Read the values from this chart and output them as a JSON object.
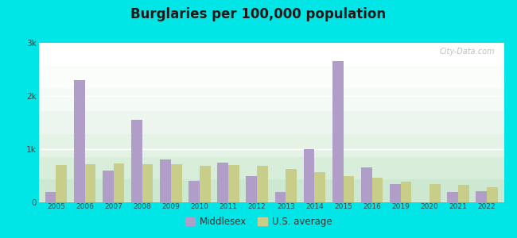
{
  "title": "Burglaries per 100,000 population",
  "years": [
    2005,
    2006,
    2007,
    2008,
    2009,
    2010,
    2011,
    2012,
    2013,
    2014,
    2015,
    2016,
    2019,
    2020,
    2021,
    2022
  ],
  "middlesex": [
    200,
    2300,
    600,
    1550,
    800,
    400,
    750,
    500,
    200,
    1000,
    2650,
    650,
    350,
    0,
    200,
    210
  ],
  "us_average": [
    700,
    720,
    730,
    720,
    720,
    690,
    700,
    680,
    620,
    570,
    490,
    460,
    390,
    340,
    330,
    290
  ],
  "middlesex_color": "#b09ec9",
  "us_avg_color": "#c8cd8a",
  "outer_bg": "#00e5e5",
  "ylim": [
    0,
    3000
  ],
  "yticks": [
    0,
    1000,
    2000,
    3000
  ],
  "ytick_labels": [
    "0",
    "1k",
    "2k",
    "3k"
  ],
  "bar_width": 0.38,
  "legend_middlesex": "Middlesex",
  "legend_us": "U.S. average",
  "title_fontsize": 12,
  "title_fontweight": "bold",
  "grad_colors": [
    "#cde8d0",
    "#d8edda",
    "#e5f2e6",
    "#edf6ee",
    "#f4faf5",
    "#fafdf9",
    "#ffffff"
  ],
  "watermark_text": "City-Data.com",
  "watermark_color": "#b0b8b0"
}
